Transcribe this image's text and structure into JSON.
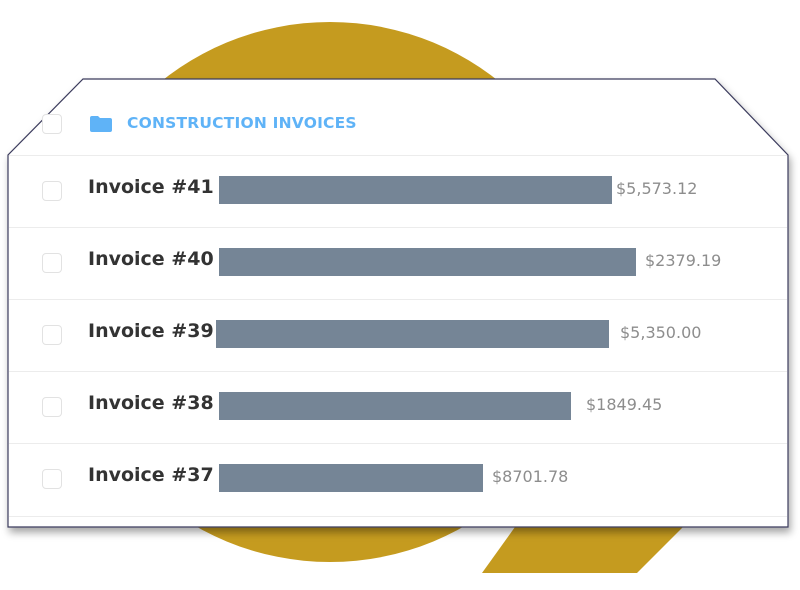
{
  "header": {
    "title": "CONSTRUCTION INVOICES",
    "icon": "folder-icon"
  },
  "invoices": [
    {
      "label": "Invoice #41 -",
      "amount": "$5,573.12"
    },
    {
      "label": "Invoice #40 -",
      "amount": "$2379.19"
    },
    {
      "label": "Invoice #39 -",
      "amount": "$5,350.00"
    },
    {
      "label": "Invoice #38 -",
      "amount": "$1849.45"
    },
    {
      "label": "Invoice #37 -",
      "amount": "$8701.78"
    }
  ],
  "colors": {
    "accent": "#c59b1f",
    "header_text": "#5fb3f7",
    "redaction": "#758596",
    "border": "#3a3a5c"
  }
}
